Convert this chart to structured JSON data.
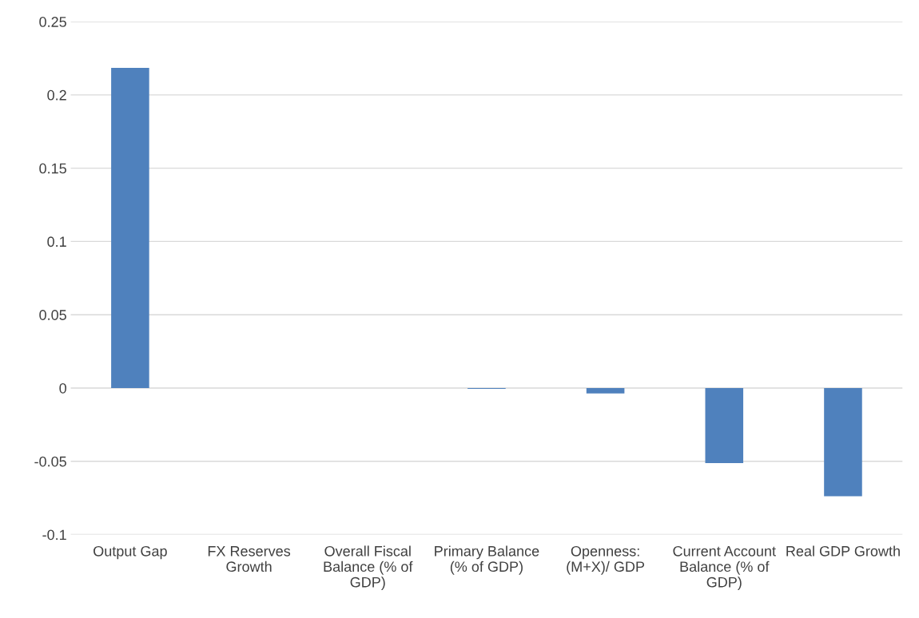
{
  "chart_data": {
    "type": "bar",
    "categories": [
      "Output Gap",
      "FX Reserves Growth",
      "Overall Fiscal Balance (% of GDP)",
      "Primary Balance (% of GDP)",
      "Openness: (M+X)/ GDP",
      "Current Account Balance (% of GDP)",
      "Real GDP Growth"
    ],
    "values": [
      0.2185,
      0.0,
      0.0,
      -0.0005,
      -0.0037,
      -0.0513,
      -0.0738
    ],
    "color": "#4f81bd",
    "ylim": [
      -0.1,
      0.25
    ],
    "yticks": [
      -0.1,
      -0.05,
      0,
      0.05,
      0.1,
      0.15,
      0.2,
      0.25
    ],
    "grid": "y"
  }
}
